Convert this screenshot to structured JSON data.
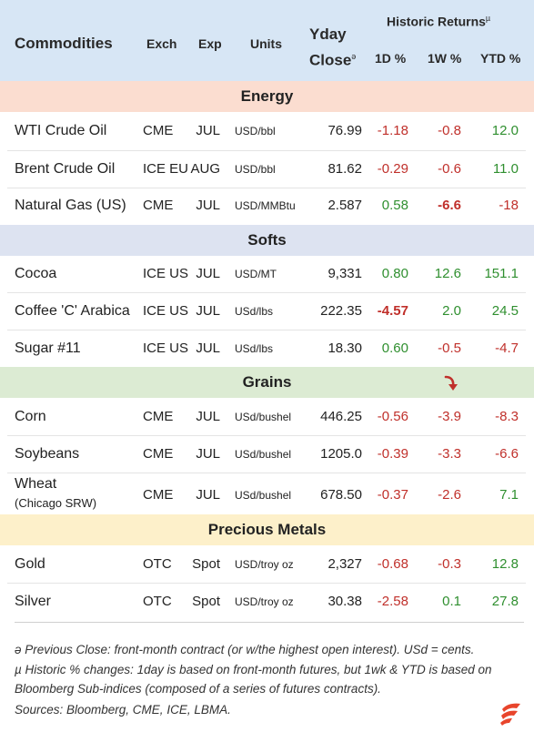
{
  "header": {
    "commodities": "Commodities",
    "exch": "Exch",
    "exp": "Exp",
    "units": "Units",
    "yday_line1": "Yday",
    "yday_line2": "Close",
    "yday_mark": "ə",
    "historic": "Historic Returns",
    "historic_mark": "µ",
    "d1": "1D %",
    "w1": "1W %",
    "ytd": "YTD %"
  },
  "sections": {
    "energy": "Energy",
    "softs": "Softs",
    "grains": "Grains",
    "metals": "Precious Metals"
  },
  "rows": [
    {
      "name": "WTI Crude Oil",
      "exch": "CME",
      "exp": "JUL",
      "units": "USD/bbl",
      "close": "76.99",
      "d1": "-1.18",
      "w1": "-0.8",
      "ytd": "12.0"
    },
    {
      "name": "Brent Crude Oil",
      "exch": "ICE EU",
      "exp": "AUG",
      "units": "USD/bbl",
      "close": "81.62",
      "d1": "-0.29",
      "w1": "-0.6",
      "ytd": "11.0"
    },
    {
      "name": "Natural Gas (US)",
      "exch": "CME",
      "exp": "JUL",
      "units": "USD/MMBtu",
      "close": "2.587",
      "d1": "0.58",
      "w1": "-6.6",
      "ytd": "-18"
    },
    {
      "name": "Cocoa",
      "exch": "ICE US",
      "exp": "JUL",
      "units": "USD/MT",
      "close": "9,331",
      "d1": "0.80",
      "w1": "12.6",
      "ytd": "151.1"
    },
    {
      "name": "Coffee 'C' Arabica",
      "exch": "ICE US",
      "exp": "JUL",
      "units": "USd/lbs",
      "close": "222.35",
      "d1": "-4.57",
      "w1": "2.0",
      "ytd": "24.5"
    },
    {
      "name": "Sugar #11",
      "exch": "ICE US",
      "exp": "JUL",
      "units": "USd/lbs",
      "close": "18.30",
      "d1": "0.60",
      "w1": "-0.5",
      "ytd": "-4.7"
    },
    {
      "name": "Corn",
      "exch": "CME",
      "exp": "JUL",
      "units": "USd/bushel",
      "close": "446.25",
      "d1": "-0.56",
      "w1": "-3.9",
      "ytd": "-8.3"
    },
    {
      "name": "Soybeans",
      "exch": "CME",
      "exp": "JUL",
      "units": "USd/bushel",
      "close": "1205.0",
      "d1": "-0.39",
      "w1": "-3.3",
      "ytd": "-6.6"
    },
    {
      "name": "Wheat",
      "name_sub": "(Chicago SRW)",
      "exch": "CME",
      "exp": "JUL",
      "units": "USd/bushel",
      "close": "678.50",
      "d1": "-0.37",
      "w1": "-2.6",
      "ytd": "7.1"
    },
    {
      "name": "Gold",
      "exch": "OTC",
      "exp": "Spot",
      "units": "USD/troy oz",
      "close": "2,327",
      "d1": "-0.68",
      "w1": "-0.3",
      "ytd": "12.8"
    },
    {
      "name": "Silver",
      "exch": "OTC",
      "exp": "Spot",
      "units": "USD/troy oz",
      "close": "30.38",
      "d1": "-2.58",
      "w1": "0.1",
      "ytd": "27.8"
    }
  ],
  "footer": {
    "note1": "ə Previous Close: front-month contract (or w/the highest open interest). USd = cents.",
    "note2": "µ Historic % changes: 1day is based on front-month futures, but 1wk & YTD is based on Bloomberg Sub-indices (composed of a series of futures contracts).",
    "note3": "Sources: Bloomberg, CME, ICE, LBMA."
  },
  "colors": {
    "header_bg": "#d7e6f5",
    "energy_bg": "#fbddd0",
    "softs_bg": "#dde3f1",
    "grains_bg": "#dcebd3",
    "metals_bg": "#fdf0ca",
    "negative": "#c0302b",
    "positive": "#2f8f2f"
  },
  "icons": {
    "trend_arrow": "curved-down-arrow-icon",
    "logo": "brand-logo-icon"
  }
}
